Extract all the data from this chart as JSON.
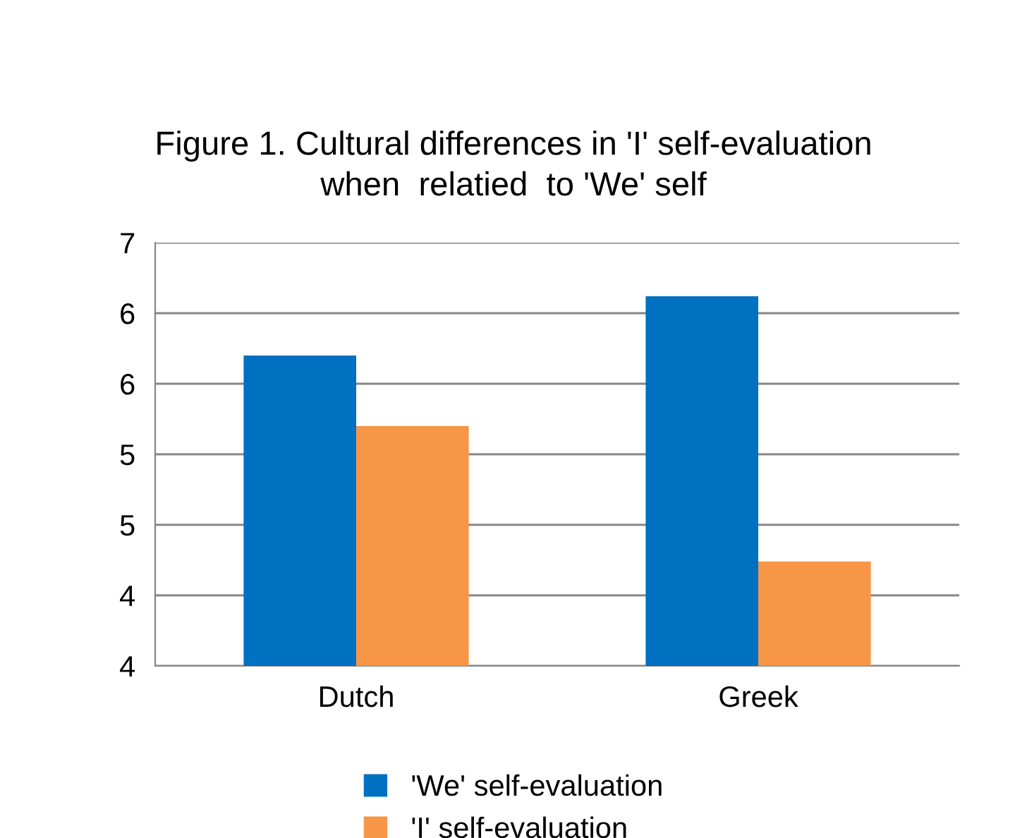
{
  "chart_data": {
    "type": "bar",
    "title": "Figure 1. Cultural differences in 'I' self-evaluation\nwhen  relatied  to 'We' self",
    "categories": [
      "Dutch",
      "Greek"
    ],
    "series": [
      {
        "name": "'We' self-evaluation",
        "color": "#0070c0",
        "values": [
          5.7,
          6.12
        ]
      },
      {
        "name": "'I' self-evaluation",
        "color": "#f79646",
        "values": [
          5.2,
          4.24
        ]
      }
    ],
    "ylim": [
      3.5,
      6.5
    ],
    "yticks": [
      {
        "value": 3.5,
        "label": "4"
      },
      {
        "value": 4.0,
        "label": "4"
      },
      {
        "value": 4.5,
        "label": "5"
      },
      {
        "value": 5.0,
        "label": "5"
      },
      {
        "value": 5.5,
        "label": "6"
      },
      {
        "value": 6.0,
        "label": "6"
      },
      {
        "value": 6.5,
        "label": "7"
      }
    ],
    "grid": "y",
    "legend": "bottom"
  }
}
